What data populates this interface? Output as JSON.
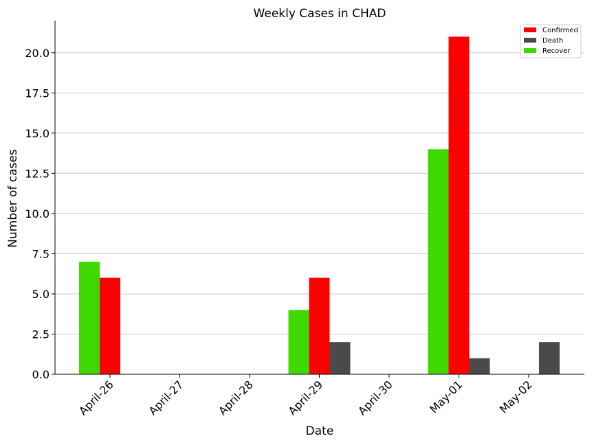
{
  "chart_data": {
    "type": "bar",
    "title": "Weekly Cases in CHAD",
    "xlabel": "Date",
    "ylabel": "Number of cases",
    "categories": [
      "April-26",
      "April-27",
      "April-28",
      "April-29",
      "April-30",
      "May-01",
      "May-02"
    ],
    "series": [
      {
        "name": "Recover",
        "color": "#3fd900",
        "values": [
          7,
          0,
          0,
          4,
          0,
          14,
          0
        ]
      },
      {
        "name": "Confirmed",
        "color": "#ff0000",
        "values": [
          6,
          0,
          0,
          6,
          0,
          21,
          0
        ]
      },
      {
        "name": "Death",
        "color": "#4a4a4a",
        "values": [
          0,
          0,
          0,
          2,
          0,
          1,
          2
        ]
      }
    ],
    "legend_order": [
      "Confirmed",
      "Death",
      "Recover"
    ],
    "ylim": [
      0,
      22
    ],
    "yticks": [
      0.0,
      2.5,
      5.0,
      7.5,
      10.0,
      12.5,
      15.0,
      17.5,
      20.0
    ],
    "ytick_labels": [
      "0.0",
      "2.5",
      "5.0",
      "7.5",
      "10.0",
      "12.5",
      "15.0",
      "17.5",
      "20.0"
    ],
    "grid": "horizontal",
    "legend_position": "top-right"
  }
}
